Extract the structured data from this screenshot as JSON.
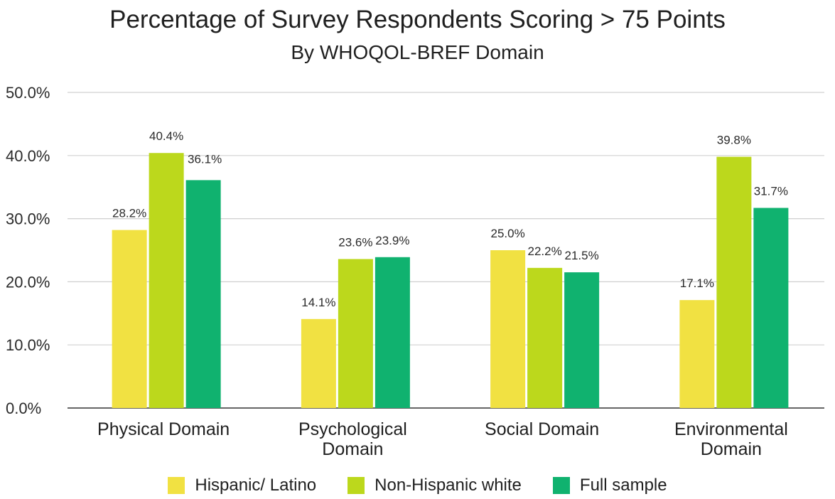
{
  "chart_data": {
    "type": "bar",
    "title": "Percentage of Survey Respondents Scoring > 75 Points",
    "subtitle": "By WHOQOL-BREF Domain",
    "xlabel": "",
    "ylabel": "",
    "categories": [
      [
        "Physical Domain"
      ],
      [
        "Psychological",
        "Domain"
      ],
      [
        "Social Domain"
      ],
      [
        "Environmental",
        "Domain"
      ]
    ],
    "series": [
      {
        "name": "Hispanic/ Latino",
        "color": "#f1e142",
        "values": [
          28.2,
          14.1,
          25.0,
          17.1
        ]
      },
      {
        "name": "Non-Hispanic white",
        "color": "#bcd81c",
        "values": [
          40.4,
          23.6,
          22.2,
          39.8
        ]
      },
      {
        "name": "Full sample",
        "color": "#10b26f",
        "values": [
          36.1,
          23.9,
          21.5,
          31.7
        ]
      }
    ],
    "ylim": [
      0,
      50
    ],
    "yticks": [
      "0.0%",
      "10.0%",
      "20.0%",
      "30.0%",
      "40.0%",
      "50.0%"
    ],
    "data_labels": true,
    "grid": true,
    "legend_position": "bottom"
  }
}
